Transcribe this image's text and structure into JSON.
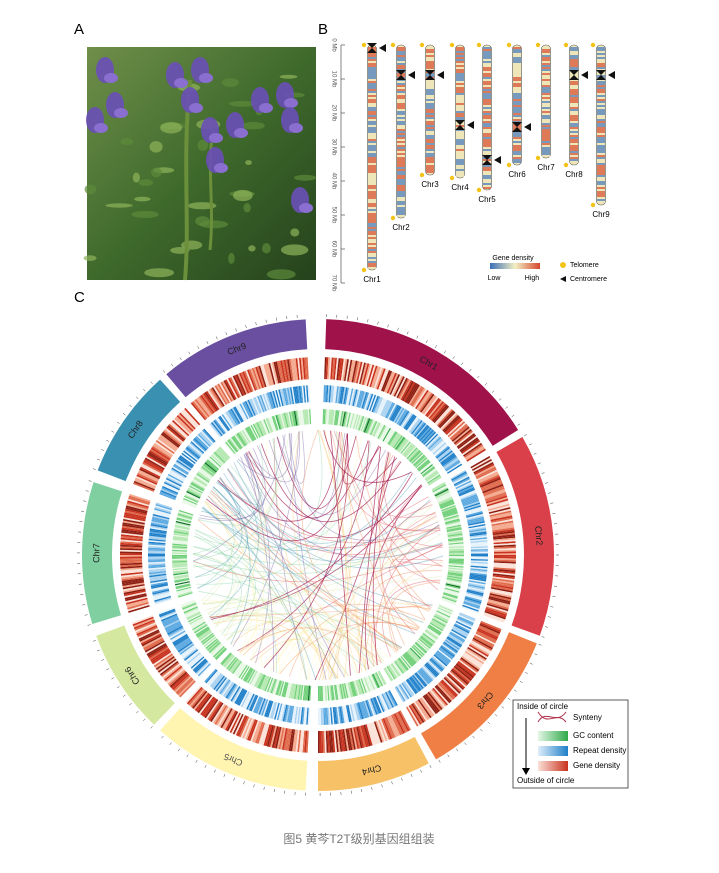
{
  "panels": {
    "a": {
      "label": "A"
    },
    "b": {
      "label": "B",
      "axis_ticks": [
        "0 Mb",
        "10 Mb",
        "20 Mb",
        "30 Mb",
        "40 Mb",
        "50 Mb",
        "60 Mb",
        "70 Mb"
      ],
      "chromosomes": [
        "Chr1",
        "Chr2",
        "Chr3",
        "Chr4",
        "Chr5",
        "Chr6",
        "Chr7",
        "Chr8",
        "Chr9"
      ],
      "legend": {
        "title": "Gene density",
        "low": "Low",
        "high": "High",
        "telomere": "Telomere",
        "centromere": "Centromere"
      }
    },
    "c": {
      "label": "C",
      "chromosomes": [
        "Chr1",
        "Chr2",
        "Chr3",
        "Chr4",
        "Chr5",
        "Chr6",
        "Chr7",
        "Chr8",
        "Chr9"
      ],
      "legend": {
        "inside": "Inside of circle",
        "synteny": "Synteny",
        "gc": "GC content",
        "repeat": "Repeat density",
        "gene": "Gene density",
        "outside": "Outside of circle"
      }
    }
  },
  "caption": "图5 黄芩T2T级别基因组组装"
}
